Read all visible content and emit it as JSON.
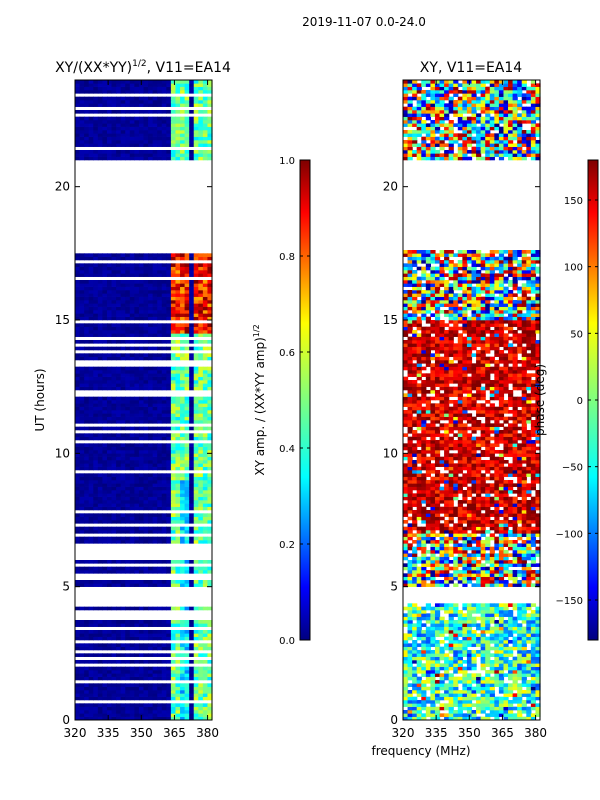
{
  "figure": {
    "suptitle": "2019-11-07 0.0-24.0",
    "shared_xlabel": "frequency (MHz)"
  },
  "colors": {
    "jet": [
      "#00007f",
      "#0000ff",
      "#007fff",
      "#00ffff",
      "#7fff7f",
      "#ffff00",
      "#ff7f00",
      "#ff0000",
      "#7f0000"
    ],
    "axis": "#000000",
    "background": "#ffffff"
  },
  "chart_data": [
    {
      "type": "heatmap",
      "name": "amplitude",
      "title_prefix": "XY/(XX*YY)",
      "title_exponent": "1/2",
      "title_suffix": ", V11=EA14",
      "ylabel": "UT (hours)",
      "xlim": [
        320,
        382
      ],
      "ylim": [
        0,
        24
      ],
      "xticks": [
        320,
        335,
        350,
        365,
        380
      ],
      "yticks": [
        0,
        5,
        10,
        15,
        20
      ],
      "colorbar": {
        "label": "XY amp. / (XX*YY amp)",
        "label_exponent": "1/2",
        "range": [
          0.0,
          1.0
        ],
        "ticks": [
          0.0,
          0.2,
          0.4,
          0.6,
          0.8,
          1.0
        ],
        "tick_labels": [
          "0.0",
          "0.2",
          "0.4",
          "0.6",
          "0.8",
          "1.0"
        ]
      },
      "data_gaps_hours": [
        [
          17.6,
          21.0
        ],
        [
          4.3,
          5.0
        ],
        [
          6.8,
          7.0
        ]
      ],
      "features": {
        "background_value": 0.0,
        "bright_band_MHz": [
          [
            362,
            366
          ],
          [
            366,
            370
          ],
          [
            372,
            376
          ],
          [
            377,
            381
          ]
        ],
        "hot_region_hours": [
          14.5,
          17.5
        ]
      }
    },
    {
      "type": "heatmap",
      "name": "phase",
      "title": "XY, V11=EA14",
      "xlim": [
        320,
        382
      ],
      "ylim": [
        0,
        24
      ],
      "xticks": [
        320,
        335,
        350,
        365,
        380
      ],
      "yticks": [
        0,
        5,
        10,
        15,
        20
      ],
      "colorbar": {
        "label": "phase (deg)",
        "range": [
          -180,
          180
        ],
        "ticks": [
          -150,
          -100,
          -50,
          0,
          50,
          100,
          150
        ],
        "tick_labels": [
          "−150",
          "−100",
          "−50",
          "0",
          "50",
          "100",
          "150"
        ]
      },
      "data_gaps_hours": [
        [
          17.6,
          21.0
        ],
        [
          4.3,
          5.0
        ]
      ],
      "features": {
        "dominant_phase_deg_7_to_15h": 150,
        "dominant_phase_deg_0_to_5h": -30
      }
    }
  ]
}
